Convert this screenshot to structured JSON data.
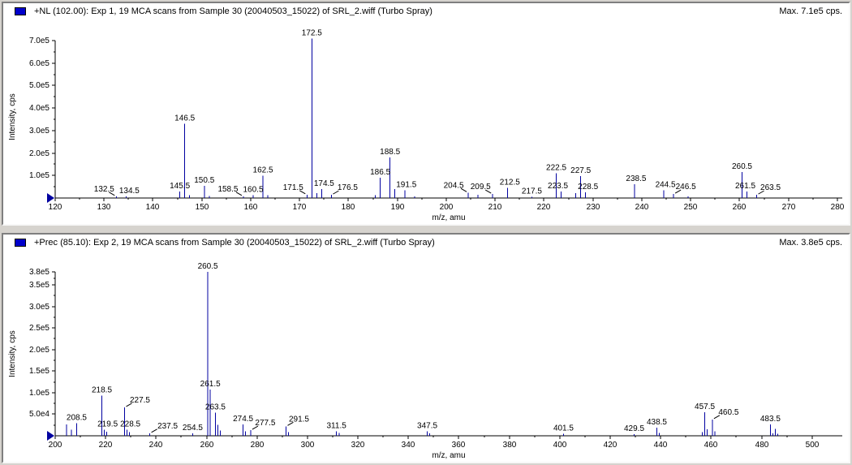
{
  "window": {
    "bg_color": "#d6d3ce",
    "pane_bg": "#ffffff",
    "bar_color": "#0000a0",
    "icon_color": "#0000cc"
  },
  "chart_data": [
    {
      "type": "bar",
      "subtype": "mass-spectrum-stick",
      "title": "+NL (102.00): Exp 1, 19 MCA scans from Sample 30 (20040503_15022) of SRL_2.wiff (Turbo Spray)",
      "max_label": "Max. 7.1e5 cps.",
      "xlabel": "m/z, amu",
      "ylabel": "Intensity, cps",
      "xlim": [
        120,
        281
      ],
      "ylim": [
        0,
        722000
      ],
      "grid": false,
      "xticks": [
        120,
        130,
        140,
        150,
        160,
        170,
        180,
        190,
        200,
        210,
        220,
        230,
        240,
        250,
        260,
        270,
        280
      ],
      "yticks": [
        [
          700000,
          "7.0e5"
        ],
        [
          600000,
          "6.0e5"
        ],
        [
          500000,
          "5.0e5"
        ],
        [
          400000,
          "4.0e5"
        ],
        [
          300000,
          "3.0e5"
        ],
        [
          200000,
          "2.0e5"
        ],
        [
          100000,
          "1.0e5"
        ]
      ],
      "peaks_format": [
        "mz",
        "intensity_cps",
        "label",
        "label_dx_px",
        "leader_line"
      ],
      "peaks": [
        [
          132.5,
          8000,
          "132.5",
          -15,
          true
        ],
        [
          134.5,
          8000,
          "134.5",
          4,
          false
        ],
        [
          145.5,
          28000,
          "145.5",
          0,
          false
        ],
        [
          146.5,
          330000,
          "146.5",
          0,
          false
        ],
        [
          147.5,
          12000,
          null,
          0,
          false
        ],
        [
          150.5,
          55000,
          "150.5",
          0,
          false
        ],
        [
          151.5,
          9000,
          null,
          0,
          false
        ],
        [
          158.5,
          8000,
          "158.5",
          -19,
          true
        ],
        [
          160.5,
          13000,
          "160.5",
          0,
          false
        ],
        [
          162.5,
          100000,
          "162.5",
          0,
          false
        ],
        [
          163.5,
          12000,
          null,
          0,
          false
        ],
        [
          171.5,
          15000,
          "171.5",
          -17,
          true
        ],
        [
          172.5,
          710000,
          "172.5",
          0,
          false
        ],
        [
          173.5,
          22000,
          null,
          0,
          false
        ],
        [
          174.5,
          40000,
          "174.5",
          3,
          false
        ],
        [
          176.5,
          14000,
          "176.5",
          20,
          true
        ],
        [
          185.5,
          12000,
          null,
          0,
          false
        ],
        [
          186.5,
          90000,
          "186.5",
          0,
          false
        ],
        [
          188.5,
          180000,
          "188.5",
          0,
          false
        ],
        [
          189.5,
          40000,
          null,
          0,
          false
        ],
        [
          191.5,
          35000,
          "191.5",
          2,
          false
        ],
        [
          193.5,
          7000,
          null,
          0,
          false
        ],
        [
          204.5,
          24000,
          "204.5",
          -18,
          true
        ],
        [
          206.5,
          14000,
          null,
          0,
          false
        ],
        [
          209.5,
          18000,
          "209.5",
          -15,
          true
        ],
        [
          212.5,
          45000,
          "212.5",
          3,
          false
        ],
        [
          217.5,
          6000,
          "217.5",
          0,
          false
        ],
        [
          222.5,
          110000,
          "222.5",
          0,
          false
        ],
        [
          223.5,
          29000,
          "223.5",
          -4,
          false
        ],
        [
          226.5,
          22000,
          null,
          0,
          false
        ],
        [
          227.5,
          97000,
          "227.5",
          0,
          false
        ],
        [
          228.5,
          25000,
          "228.5",
          3,
          false
        ],
        [
          238.5,
          61000,
          "238.5",
          2,
          false
        ],
        [
          244.5,
          35000,
          "244.5",
          2,
          false
        ],
        [
          246.5,
          18000,
          "246.5",
          15,
          true
        ],
        [
          249.5,
          7000,
          null,
          0,
          false
        ],
        [
          260.5,
          115000,
          "260.5",
          0,
          false
        ],
        [
          261.5,
          29000,
          "261.5",
          -2,
          false
        ],
        [
          263.5,
          14000,
          "263.5",
          17,
          true
        ]
      ]
    },
    {
      "type": "bar",
      "subtype": "mass-spectrum-stick",
      "title": "+Prec (85.10): Exp 2, 19 MCA scans from Sample 30 (20040503_15022) of SRL_2.wiff (Turbo Spray)",
      "max_label": "Max. 3.8e5 cps.",
      "xlabel": "m/z, amu",
      "ylabel": "Intensity, cps",
      "xlim": [
        200,
        512
      ],
      "ylim": [
        0,
        380000
      ],
      "grid": false,
      "xticks": [
        200,
        220,
        240,
        260,
        280,
        300,
        320,
        340,
        360,
        380,
        400,
        420,
        440,
        460,
        480,
        500
      ],
      "yticks": [
        [
          380000,
          "3.8e5"
        ],
        [
          350000,
          "3.5e5"
        ],
        [
          300000,
          "3.0e5"
        ],
        [
          250000,
          "2.5e5"
        ],
        [
          200000,
          "2.0e5"
        ],
        [
          150000,
          "1.5e5"
        ],
        [
          100000,
          "1.0e5"
        ],
        [
          50000,
          "5.0e4"
        ]
      ],
      "peaks_format": [
        "mz",
        "intensity_cps",
        "label",
        "label_dx_px",
        "leader_line"
      ],
      "peaks": [
        [
          204.5,
          26000,
          null,
          0,
          false
        ],
        [
          206.5,
          14000,
          null,
          0,
          false
        ],
        [
          208.5,
          29000,
          "208.5",
          0,
          false
        ],
        [
          218.5,
          93000,
          "218.5",
          0,
          false
        ],
        [
          219.5,
          14000,
          "219.5",
          4,
          false
        ],
        [
          220.5,
          9000,
          null,
          0,
          false
        ],
        [
          227.5,
          66000,
          "227.5",
          19,
          true
        ],
        [
          228.5,
          14000,
          "228.5",
          4,
          false
        ],
        [
          229.5,
          8000,
          null,
          0,
          false
        ],
        [
          237.5,
          6000,
          "237.5",
          22,
          true
        ],
        [
          254.5,
          6000,
          "254.5",
          0,
          false
        ],
        [
          260.5,
          380000,
          "260.5",
          0,
          false
        ],
        [
          261.5,
          107000,
          "261.5",
          0,
          false
        ],
        [
          263.5,
          54000,
          "263.5",
          0,
          false
        ],
        [
          264.5,
          25000,
          null,
          0,
          false
        ],
        [
          265.5,
          12000,
          null,
          0,
          false
        ],
        [
          274.5,
          26000,
          "274.5",
          0,
          false
        ],
        [
          275.5,
          10000,
          null,
          0,
          false
        ],
        [
          277.5,
          13000,
          "277.5",
          18,
          true
        ],
        [
          291.5,
          22000,
          "291.5",
          16,
          true
        ],
        [
          292.5,
          8000,
          null,
          0,
          false
        ],
        [
          311.5,
          10000,
          "311.5",
          0,
          false
        ],
        [
          312.5,
          7000,
          null,
          0,
          false
        ],
        [
          347.5,
          10000,
          "347.5",
          0,
          false
        ],
        [
          348.5,
          6000,
          null,
          0,
          false
        ],
        [
          401.5,
          5000,
          "401.5",
          0,
          false
        ],
        [
          429.5,
          4000,
          "429.5",
          0,
          false
        ],
        [
          438.5,
          19000,
          "438.5",
          0,
          false
        ],
        [
          439.5,
          7000,
          null,
          0,
          false
        ],
        [
          456.5,
          8000,
          null,
          0,
          false
        ],
        [
          457.5,
          55000,
          "457.5",
          0,
          false
        ],
        [
          458.5,
          15000,
          null,
          0,
          false
        ],
        [
          460.5,
          38000,
          "460.5",
          20,
          true
        ],
        [
          461.5,
          10000,
          null,
          0,
          false
        ],
        [
          483.5,
          26000,
          "483.5",
          0,
          false
        ],
        [
          484.5,
          6000,
          null,
          0,
          false
        ],
        [
          485.5,
          16000,
          null,
          0,
          false
        ],
        [
          486.5,
          5000,
          null,
          0,
          false
        ]
      ]
    }
  ]
}
